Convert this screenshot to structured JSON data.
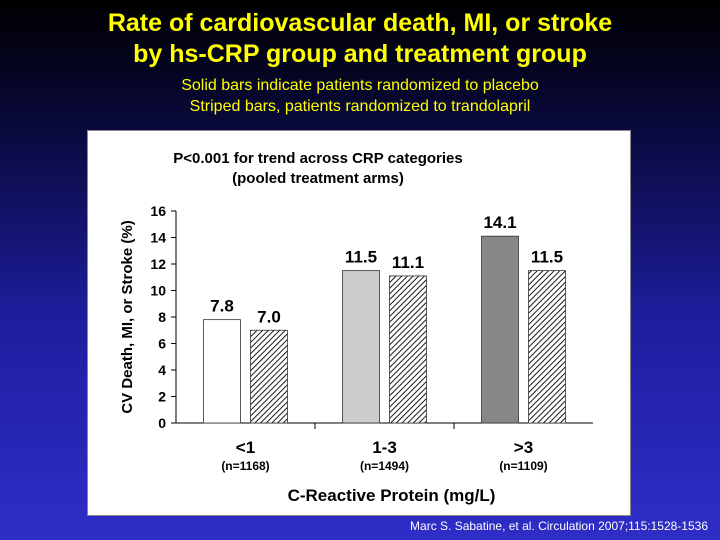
{
  "title_lines": [
    "Rate of cardiovascular death, MI, or stroke",
    "by hs-CRP group and treatment group"
  ],
  "subtitle_lines": [
    "Solid bars indicate patients randomized to placebo",
    "Striped  bars,  patients  randomized  to trandolapril"
  ],
  "citation": "Marc S. Sabatine, et al. Circulation 2007;115:1528-1536",
  "colors": {
    "title": "#ffff00",
    "background_top": "#000000",
    "background_bottom": "#2e2ec8",
    "bar_low": "#ffffff",
    "bar_mid": "#cccccc",
    "bar_high": "#888888"
  },
  "chart_data": {
    "type": "bar",
    "annotation_lines": [
      "P<0.001 for trend across CRP categories",
      "(pooled treatment arms)"
    ],
    "ylabel": "CV Death, MI, or Stroke (%)",
    "xlabel": "C-Reactive Protein (mg/L)",
    "ylim": [
      0,
      16
    ],
    "yticks": [
      0,
      2,
      4,
      6,
      8,
      10,
      12,
      14,
      16
    ],
    "categories": [
      "<1",
      "1-3",
      ">3"
    ],
    "category_sublabels": [
      "(n=1168)",
      "(n=1494)",
      "(n=1109)"
    ],
    "series": [
      {
        "name": "Placebo",
        "style": "solid",
        "values": [
          7.8,
          11.5,
          14.1
        ]
      },
      {
        "name": "Trandolapril",
        "style": "striped",
        "values": [
          7.0,
          11.1,
          11.5
        ]
      }
    ],
    "data_labels": [
      [
        "7.8",
        "11.5",
        "14.1"
      ],
      [
        "7.0",
        "11.1",
        "11.5"
      ]
    ],
    "grid": false,
    "legend": "none"
  }
}
